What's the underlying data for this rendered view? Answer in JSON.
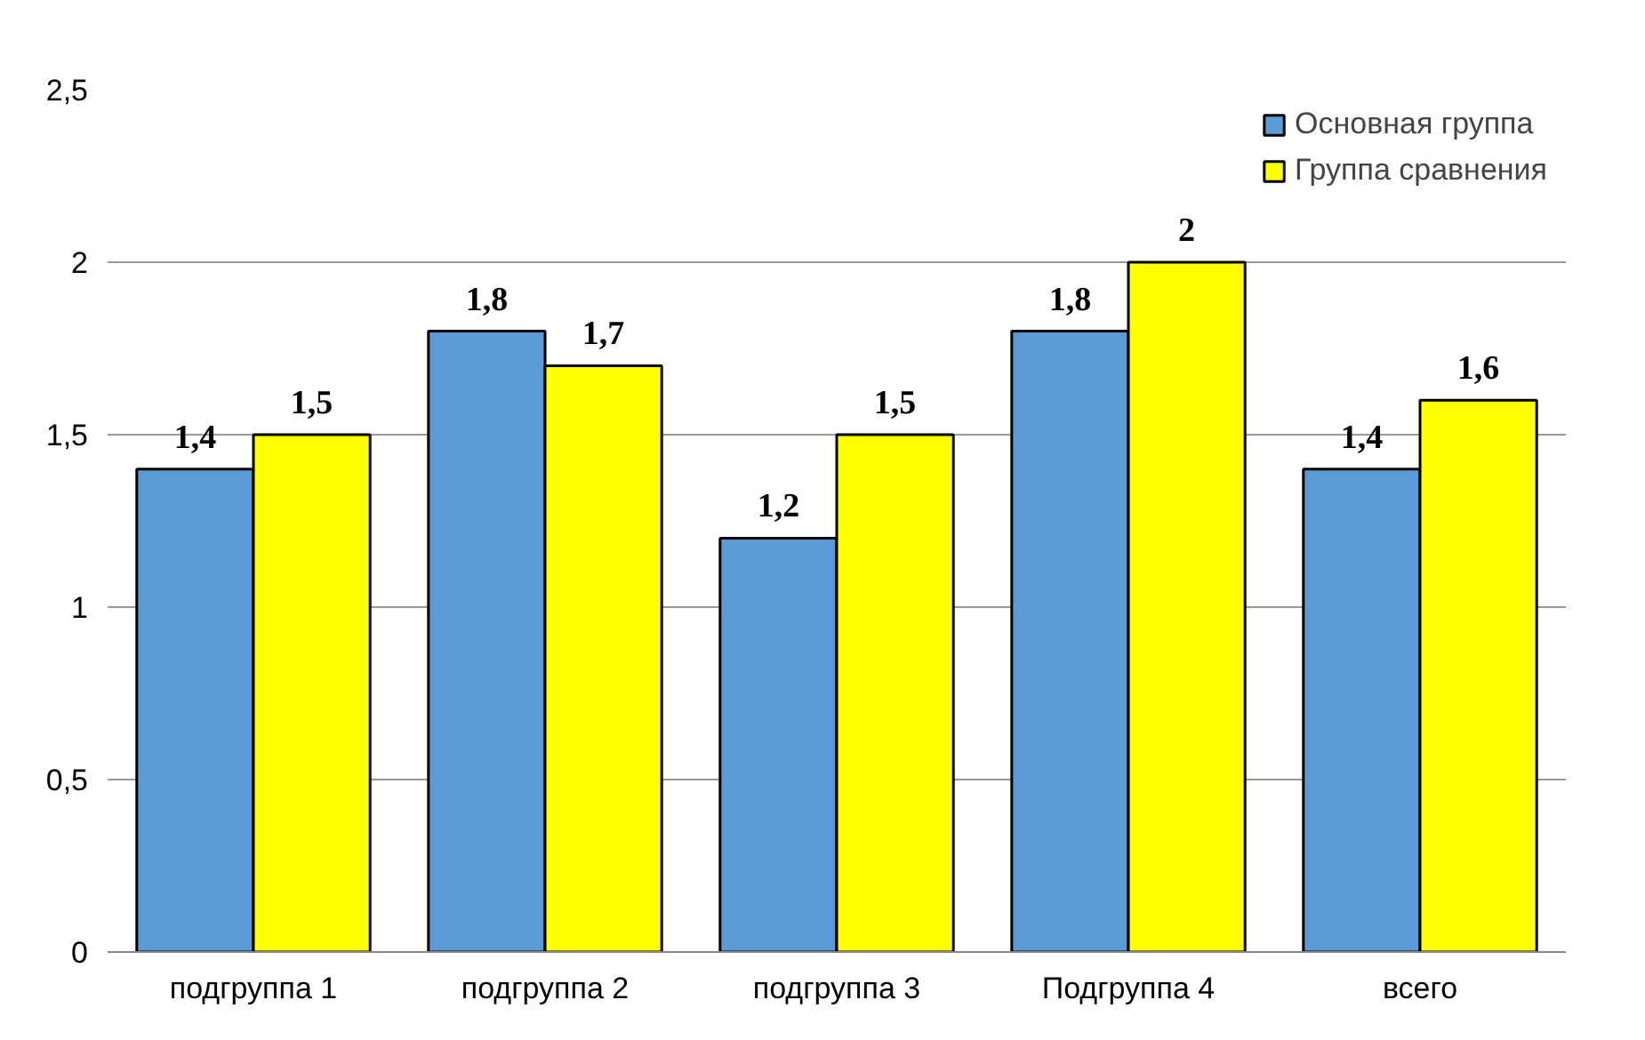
{
  "chart_data": {
    "type": "bar",
    "categories": [
      "подгруппа 1",
      "подгруппа 2",
      "подгруппа 3",
      "Подгруппа 4",
      "всего"
    ],
    "series": [
      {
        "name": "Основная группа",
        "color": "#5b9bd5",
        "values": [
          1.4,
          1.8,
          1.2,
          1.8,
          1.4
        ],
        "value_labels": [
          "1,4",
          "1,8",
          "1,2",
          "1,8",
          "1,4"
        ]
      },
      {
        "name": "Группа сравнения",
        "color": "#ffff00",
        "values": [
          1.5,
          1.7,
          1.5,
          2,
          1.6
        ],
        "value_labels": [
          "1,5",
          "1,7",
          "1,5",
          "2",
          "1,6"
        ]
      }
    ],
    "ylim": [
      0,
      2.5
    ],
    "yticks": [
      0,
      {
        "value": 0.5,
        "label": "0,5"
      },
      1,
      {
        "value": 1.5,
        "label": "1,5"
      },
      2,
      {
        "value": 2.5,
        "label": "2,5"
      }
    ],
    "grid": "y",
    "legend": "top right"
  }
}
